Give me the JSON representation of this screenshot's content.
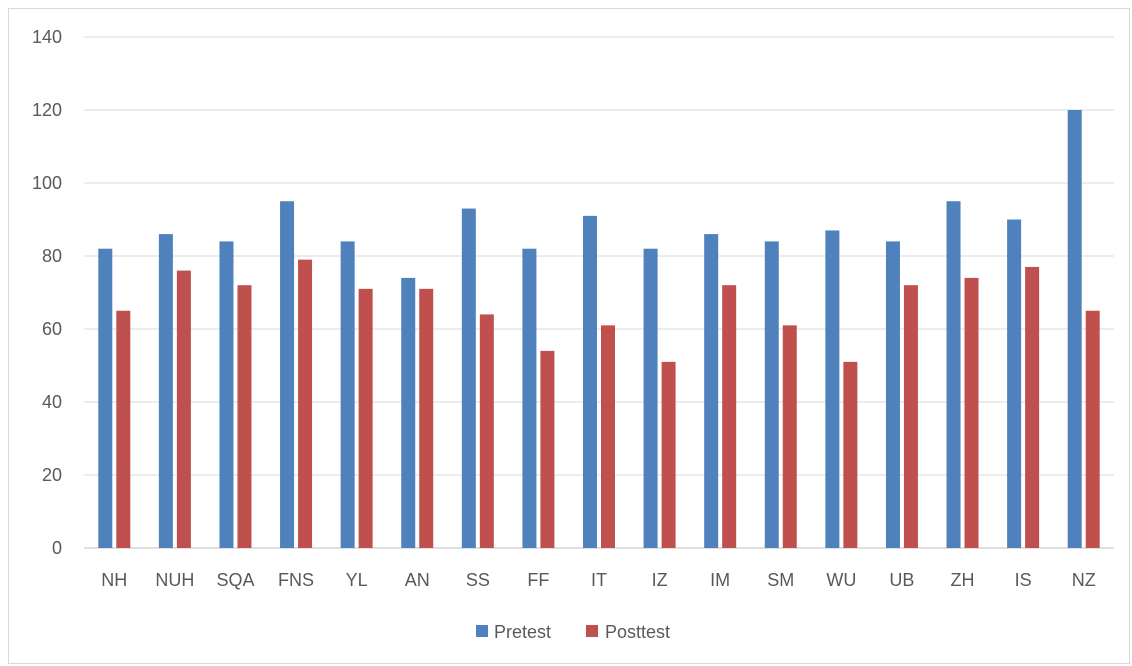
{
  "chart_data": {
    "type": "bar",
    "categories": [
      "NH",
      "NUH",
      "SQA",
      "FNS",
      "YL",
      "AN",
      "SS",
      "FF",
      "IT",
      "IZ",
      "IM",
      "SM",
      "WU",
      "UB",
      "ZH",
      "IS",
      "NZ"
    ],
    "series": [
      {
        "name": "Pretest",
        "color": "#4f81bd",
        "values": [
          82,
          86,
          84,
          95,
          84,
          74,
          93,
          82,
          91,
          82,
          86,
          84,
          87,
          84,
          95,
          90,
          120
        ]
      },
      {
        "name": "Posttest",
        "color": "#c0504d",
        "values": [
          65,
          76,
          72,
          79,
          71,
          71,
          64,
          54,
          61,
          51,
          72,
          61,
          51,
          72,
          74,
          77,
          65
        ]
      }
    ],
    "ylim": [
      0,
      140
    ],
    "yticks": [
      0,
      20,
      40,
      60,
      80,
      100,
      120,
      140
    ],
    "grid": true,
    "legend_position": "bottom"
  }
}
